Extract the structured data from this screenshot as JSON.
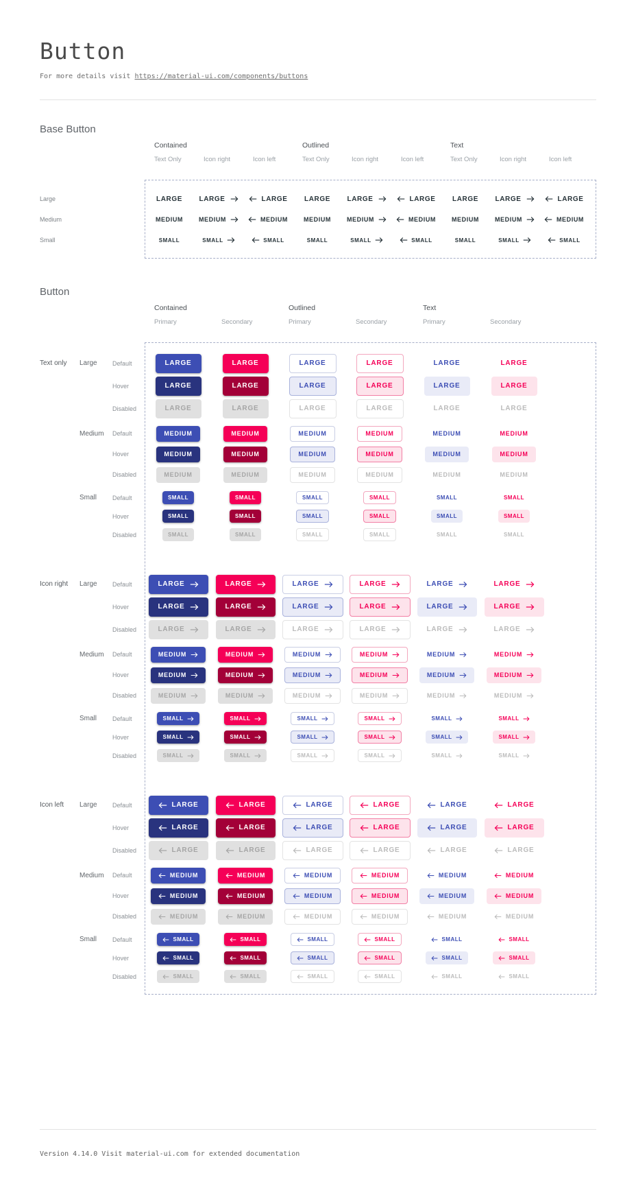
{
  "page": {
    "title": "Button",
    "subtitle_prefix": "For more details visit ",
    "subtitle_link": "https://material-ui.com/components/buttons",
    "footer": "Version 4.14.0  Visit material-ui.com for extended documentation"
  },
  "colors": {
    "primary": "#3D4EB4",
    "primary_hover": "#29337E",
    "secondary": "#F50057",
    "secondary_hover": "#A30038",
    "primary_tint": "#E9EBF7",
    "secondary_tint": "#FDE3EB",
    "outlined_primary_border": "#C9CEE4",
    "outlined_primary_border_hover": "#A9B2DC",
    "outlined_secondary_border": "#F3A7BE",
    "outlined_secondary_border_hover": "#F27FA5",
    "disabled_bg": "#E0E0E0",
    "disabled_contained_text": "#A5A5A5",
    "disabled_text": "#BBBBBB",
    "disabled_border": "#E3E3E3",
    "base_text": "#263238",
    "frame_border": "#A6AEC8"
  },
  "base_section": {
    "title": "Base Button",
    "column_groups": [
      "Contained",
      "Outlined",
      "Text"
    ],
    "subcolumns": [
      "Text Only",
      "Icon right",
      "Icon left"
    ],
    "rows": [
      {
        "label": "Large",
        "button_text": "LARGE"
      },
      {
        "label": "Medium",
        "button_text": "MEDIUM"
      },
      {
        "label": "Small",
        "button_text": "SMALL"
      }
    ]
  },
  "button_section": {
    "title": "Button",
    "column_groups": [
      "Contained",
      "Outlined",
      "Text"
    ],
    "subcolumns": [
      "Primary",
      "Secondary"
    ],
    "row_groups": [
      {
        "label": "Text only",
        "icon": "none"
      },
      {
        "label": "Icon right",
        "icon": "right"
      },
      {
        "label": "Icon left",
        "icon": "left"
      }
    ],
    "sizes": [
      {
        "label": "Large",
        "button_text": "LARGE"
      },
      {
        "label": "Medium",
        "button_text": "MEDIUM"
      },
      {
        "label": "Small",
        "button_text": "SMALL"
      }
    ],
    "states": [
      "Default",
      "Hover",
      "Disabled"
    ],
    "variants": [
      {
        "variant": "contained",
        "palette": "primary"
      },
      {
        "variant": "contained",
        "palette": "secondary"
      },
      {
        "variant": "outlined",
        "palette": "primary"
      },
      {
        "variant": "outlined",
        "palette": "secondary"
      },
      {
        "variant": "text",
        "palette": "primary"
      },
      {
        "variant": "text",
        "palette": "secondary"
      }
    ]
  },
  "icons": {
    "right": "arrow-right-icon",
    "left": "arrow-left-icon"
  }
}
